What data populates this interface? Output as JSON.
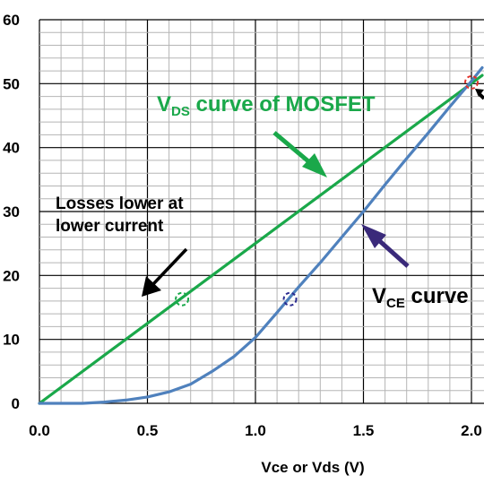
{
  "chart_data": {
    "type": "line",
    "title": "",
    "xlabel": "Vce or Vds (V)",
    "ylabel": "",
    "xlim": [
      0,
      2.05
    ],
    "ylim": [
      0,
      60
    ],
    "grid": true,
    "x_ticks": [
      "0.0",
      "0.5",
      "1.0",
      "1.5",
      "2.0"
    ],
    "y_ticks": [
      "0",
      "10",
      "20",
      "30",
      "40",
      "50",
      "60"
    ],
    "series": [
      {
        "color": "#1aa84a",
        "x": [
          0.0,
          2.05
        ],
        "y": [
          0.0,
          51.3
        ]
      },
      {
        "color": "#4f81bd",
        "x": [
          0.0,
          0.2,
          0.3,
          0.4,
          0.5,
          0.6,
          0.7,
          0.8,
          0.9,
          1.0,
          1.1,
          1.2,
          1.3,
          1.4,
          1.5,
          1.6,
          1.7,
          1.8,
          1.9,
          2.0,
          2.05
        ],
        "y": [
          0.0,
          0.0,
          0.2,
          0.5,
          1.0,
          1.8,
          3.0,
          5.0,
          7.3,
          10.3,
          14.2,
          18.2,
          22.0,
          26.0,
          30.0,
          34.2,
          38.3,
          42.3,
          46.4,
          50.4,
          52.5
        ]
      }
    ],
    "markers": [
      {
        "x": 0.66,
        "y": 16.3,
        "color": "#1aa84a"
      },
      {
        "x": 1.16,
        "y": 16.3,
        "color": "#2b2b8f"
      },
      {
        "x": 2.0,
        "y": 50.2,
        "color": "#e0322b"
      }
    ],
    "annotations": [
      {
        "id": "vds",
        "main": "V",
        "sub": "DS",
        "rest": " curve of MOSFET",
        "color": "#1aa84a"
      },
      {
        "id": "vce",
        "main": "V",
        "sub": "CE",
        "rest": " curve",
        "color": "#000000"
      },
      {
        "id": "loss1",
        "text": "Losses lower at",
        "color": "#000000"
      },
      {
        "id": "loss2",
        "text": "lower current",
        "color": "#000000"
      }
    ]
  }
}
